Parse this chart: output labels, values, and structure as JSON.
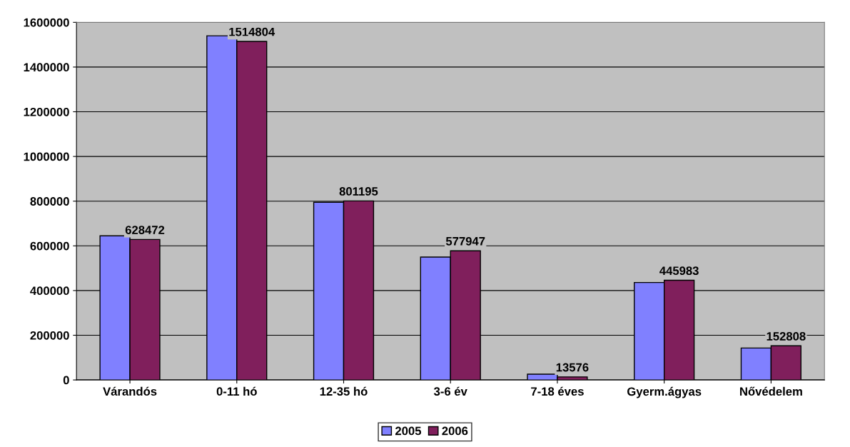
{
  "chart_data": {
    "type": "bar",
    "categories": [
      "Várandós",
      "0-11 hó",
      "12-35 hó",
      "3-6 év",
      "7-18 éves",
      "Gyerm.ágyas",
      "Nővédelem"
    ],
    "series": [
      {
        "name": "2005",
        "color": "#8080ff",
        "values": [
          645000,
          1540000,
          795000,
          550000,
          26000,
          436000,
          143000
        ]
      },
      {
        "name": "2006",
        "color": "#801f5c",
        "values": [
          628472,
          1514804,
          801195,
          577947,
          13576,
          445983,
          152808
        ],
        "value_labels": [
          "628472",
          "1514804",
          "801195",
          "577947",
          "13576",
          "445983",
          "152808"
        ]
      }
    ],
    "ylim": [
      0,
      1600000
    ],
    "yticks": [
      0,
      200000,
      400000,
      600000,
      800000,
      1000000,
      1200000,
      1400000,
      1600000
    ],
    "grid": "y",
    "legend": "bottom"
  }
}
